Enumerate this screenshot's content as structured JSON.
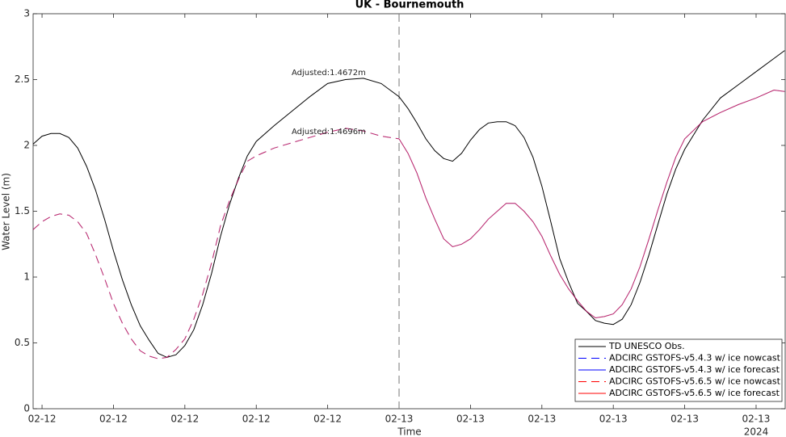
{
  "chart_data": {
    "type": "line",
    "title": "UK - Bournemouth",
    "xlabel": "Time",
    "ylabel": "Water Level (m)",
    "x_secondary_label": "2024",
    "x": [
      3.5,
      4,
      4.5,
      5,
      5.5,
      6,
      6.5,
      7,
      7.5,
      8,
      8.5,
      9,
      9.5,
      10,
      10.5,
      11,
      11.5,
      12,
      12.5,
      13,
      13.5,
      14,
      14.5,
      15,
      15.5,
      16,
      17,
      18,
      19,
      20,
      21,
      22,
      23,
      24,
      24.5,
      25,
      25.5,
      26,
      26.5,
      27,
      27.5,
      28,
      28.5,
      29,
      29.5,
      30,
      30.5,
      31,
      31.5,
      32,
      32.5,
      33,
      33.5,
      34,
      34.5,
      35,
      35.5,
      36,
      36.5,
      37,
      37.5,
      38,
      38.5,
      39,
      39.5,
      40,
      41,
      42,
      43,
      44,
      45,
      45.6
    ],
    "series": [
      {
        "name": "TD UNESCO Obs.",
        "color": "#000000",
        "linestyle": "solid",
        "values": [
          2.01,
          2.07,
          2.09,
          2.09,
          2.06,
          1.98,
          1.84,
          1.66,
          1.44,
          1.2,
          0.98,
          0.79,
          0.63,
          0.52,
          0.42,
          0.39,
          0.41,
          0.48,
          0.6,
          0.79,
          1.03,
          1.31,
          1.55,
          1.75,
          1.92,
          2.03,
          2.15,
          2.26,
          2.37,
          2.47,
          2.5,
          2.51,
          2.47,
          2.37,
          2.28,
          2.17,
          2.05,
          1.96,
          1.9,
          1.88,
          1.94,
          2.04,
          2.12,
          2.17,
          2.18,
          2.18,
          2.15,
          2.06,
          1.91,
          1.69,
          1.42,
          1.14,
          0.96,
          0.8,
          0.74,
          0.67,
          0.65,
          0.64,
          0.68,
          0.79,
          0.96,
          1.17,
          1.4,
          1.63,
          1.82,
          1.97,
          2.19,
          2.36,
          2.46,
          2.56,
          2.66,
          2.72
        ]
      },
      {
        "name": "ADCIRC GSTOFS-v5.4.3 w/ ice nowcast",
        "color": "#0000ff",
        "linestyle": "dashed",
        "values": [
          1.36,
          1.42,
          1.46,
          1.48,
          1.47,
          1.42,
          1.33,
          1.17,
          0.99,
          0.8,
          0.65,
          0.53,
          0.44,
          0.4,
          0.38,
          0.39,
          0.45,
          0.53,
          0.68,
          0.87,
          1.11,
          1.39,
          1.58,
          1.74,
          1.88,
          1.92,
          1.98,
          2.02,
          2.06,
          2.1,
          2.13,
          2.11,
          2.07,
          2.05,
          null,
          null,
          null,
          null,
          null,
          null,
          null,
          null,
          null,
          null,
          null,
          null,
          null,
          null,
          null,
          null,
          null,
          null,
          null,
          null,
          null,
          null,
          null,
          null,
          null,
          null,
          null,
          null,
          null,
          null,
          null,
          null,
          null,
          null,
          null,
          null,
          null,
          null
        ]
      },
      {
        "name": "ADCIRC GSTOFS-v5.4.3 w/ ice forecast",
        "color": "#0000ff",
        "linestyle": "solid",
        "values": [
          null,
          null,
          null,
          null,
          null,
          null,
          null,
          null,
          null,
          null,
          null,
          null,
          null,
          null,
          null,
          null,
          null,
          null,
          null,
          null,
          null,
          null,
          null,
          null,
          null,
          null,
          null,
          null,
          null,
          null,
          null,
          null,
          null,
          2.05,
          1.94,
          1.79,
          1.6,
          1.44,
          1.29,
          1.23,
          1.25,
          1.29,
          1.36,
          1.44,
          1.5,
          1.56,
          1.56,
          1.5,
          1.42,
          1.31,
          1.16,
          1.02,
          0.91,
          0.82,
          0.74,
          0.69,
          0.7,
          0.72,
          0.79,
          0.91,
          1.08,
          1.29,
          1.51,
          1.72,
          1.91,
          2.05,
          2.18,
          2.25,
          2.31,
          2.36,
          2.42,
          2.41
        ]
      },
      {
        "name": "ADCIRC GSTOFS-v5.6.5 w/ ice nowcast",
        "color": "#ff0000",
        "linestyle": "dashed",
        "values": [
          1.36,
          1.42,
          1.46,
          1.48,
          1.47,
          1.42,
          1.33,
          1.17,
          0.99,
          0.8,
          0.65,
          0.53,
          0.44,
          0.4,
          0.38,
          0.39,
          0.45,
          0.53,
          0.68,
          0.87,
          1.11,
          1.39,
          1.58,
          1.74,
          1.88,
          1.92,
          1.98,
          2.02,
          2.06,
          2.1,
          2.13,
          2.11,
          2.07,
          2.05,
          null,
          null,
          null,
          null,
          null,
          null,
          null,
          null,
          null,
          null,
          null,
          null,
          null,
          null,
          null,
          null,
          null,
          null,
          null,
          null,
          null,
          null,
          null,
          null,
          null,
          null,
          null,
          null,
          null,
          null,
          null,
          null,
          null,
          null,
          null,
          null,
          null,
          null
        ]
      },
      {
        "name": "ADCIRC GSTOFS-v5.6.5 w/ ice forecast",
        "color": "#ff0000",
        "linestyle": "solid",
        "values": [
          null,
          null,
          null,
          null,
          null,
          null,
          null,
          null,
          null,
          null,
          null,
          null,
          null,
          null,
          null,
          null,
          null,
          null,
          null,
          null,
          null,
          null,
          null,
          null,
          null,
          null,
          null,
          null,
          null,
          null,
          null,
          null,
          null,
          2.05,
          1.94,
          1.79,
          1.6,
          1.44,
          1.29,
          1.23,
          1.25,
          1.29,
          1.36,
          1.44,
          1.5,
          1.56,
          1.56,
          1.5,
          1.42,
          1.31,
          1.16,
          1.02,
          0.91,
          0.82,
          0.74,
          0.69,
          0.7,
          0.72,
          0.79,
          0.91,
          1.08,
          1.29,
          1.51,
          1.72,
          1.91,
          2.05,
          2.18,
          2.25,
          2.31,
          2.36,
          2.42,
          2.41
        ]
      }
    ],
    "xlim": [
      3.5,
      45.63
    ],
    "xticks": [
      {
        "value": 4,
        "label": "02-12"
      },
      {
        "value": 8,
        "label": "02-12"
      },
      {
        "value": 12,
        "label": "02-12"
      },
      {
        "value": 16,
        "label": "02-12"
      },
      {
        "value": 20,
        "label": "02-12"
      },
      {
        "value": 24,
        "label": "02-13"
      },
      {
        "value": 28,
        "label": "02-13"
      },
      {
        "value": 32,
        "label": "02-13"
      },
      {
        "value": 36,
        "label": "02-13"
      },
      {
        "value": 40,
        "label": "02-13"
      },
      {
        "value": 44,
        "label": "02-13"
      }
    ],
    "ylim": [
      0,
      3
    ],
    "yticks": [
      0,
      0.5,
      1,
      1.5,
      2,
      2.5,
      3
    ],
    "forecast_start": 24,
    "annotations": [
      {
        "text": "Adjusted:1.4672m",
        "color": "#0000ff"
      },
      {
        "text": "Adjusted:1.4696m",
        "color": "#ff0000"
      }
    ],
    "grid": false,
    "legend": "lower right"
  }
}
